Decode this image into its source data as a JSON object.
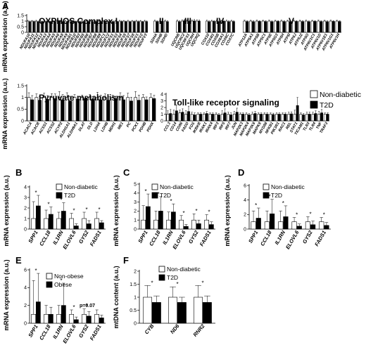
{
  "chart_data": [
    {
      "panel": "A",
      "type": "bar",
      "title": "OXPHOS Complex I",
      "ylabel": "mRNA expression (a.u.)",
      "ylim": [
        0,
        1.5
      ],
      "yticks": [
        0,
        0.5,
        1,
        1.5
      ],
      "categories": [
        "NDUFA10",
        "NDUFA11",
        "NDUFA12",
        "NDUFA13",
        "NDUFA3",
        "NDUFA4",
        "NDUFA5",
        "NDUFA6",
        "NDUFA8",
        "NDUFA9",
        "NDUFAB1",
        "NDUFB10",
        "NDUFB3",
        "NDUFB5",
        "NDUFB6",
        "NDUFB7",
        "NDUFB8",
        "NDUFB9",
        "NDUFC1",
        "NDUFC2",
        "NDUFS1",
        "NDUFS3",
        "NDUFS4",
        "NDUFS5",
        "NDUFS7",
        "NDUFS8",
        "NDUFV1",
        "NDUFV2",
        "NDUFV3"
      ],
      "series": [
        {
          "name": "Non-diabetic",
          "values": [
            1,
            1,
            1,
            1,
            1,
            1,
            1,
            1,
            1,
            1,
            1,
            1,
            1,
            1,
            1,
            1,
            1,
            1,
            1,
            1,
            1,
            1,
            1,
            1,
            1,
            1,
            1,
            1,
            1
          ],
          "error": [
            0.07,
            0.06,
            0.07,
            0.06,
            0.07,
            0.06,
            0.07,
            0.06,
            0.07,
            0.06,
            0.07,
            0.06,
            0.07,
            0.06,
            0.07,
            0.06,
            0.07,
            0.06,
            0.07,
            0.06,
            0.07,
            0.06,
            0.07,
            0.06,
            0.07,
            0.06,
            0.07,
            0.06,
            0.07
          ]
        },
        {
          "name": "T2D",
          "values": [
            0.95,
            0.96,
            0.94,
            0.95,
            0.96,
            0.95,
            0.94,
            0.96,
            0.95,
            0.94,
            0.96,
            0.95,
            0.94,
            0.96,
            0.95,
            0.94,
            0.96,
            0.95,
            0.94,
            0.96,
            0.95,
            0.94,
            0.96,
            0.95,
            0.94,
            0.96,
            0.95,
            0.94,
            0.96
          ],
          "error": [
            0.06,
            0.05,
            0.06,
            0.05,
            0.06,
            0.05,
            0.06,
            0.05,
            0.06,
            0.05,
            0.06,
            0.05,
            0.06,
            0.05,
            0.06,
            0.05,
            0.06,
            0.05,
            0.06,
            0.05,
            0.06,
            0.05,
            0.06,
            0.05,
            0.06,
            0.05,
            0.06,
            0.05,
            0.06
          ]
        }
      ]
    },
    {
      "panel": "A",
      "type": "bar",
      "title": "II",
      "ylim": [
        0,
        1.5
      ],
      "categories": [
        "SDHA",
        "SDHB",
        "SDHD"
      ],
      "series": [
        {
          "name": "Non-diabetic",
          "values": [
            1,
            1,
            1
          ],
          "error": [
            0.08,
            0.07,
            0.08
          ]
        },
        {
          "name": "T2D",
          "values": [
            0.96,
            0.97,
            0.95
          ],
          "error": [
            0.06,
            0.06,
            0.07
          ]
        }
      ]
    },
    {
      "panel": "A",
      "type": "bar",
      "title": "III",
      "ylim": [
        0,
        1.5
      ],
      "categories": [
        "UQCRB",
        "UQCRC2",
        "UQCRFS1",
        "UQCRH",
        "UQCRQ"
      ],
      "series": [
        {
          "name": "Non-diabetic",
          "values": [
            1,
            1,
            1,
            1,
            1
          ],
          "error": [
            0.1,
            0.12,
            0.1,
            0.11,
            0.12
          ]
        },
        {
          "name": "T2D",
          "values": [
            0.95,
            1.05,
            0.97,
            1.02,
            1.0
          ],
          "error": [
            0.08,
            0.1,
            0.08,
            0.12,
            0.1
          ]
        }
      ]
    },
    {
      "panel": "A",
      "type": "bar",
      "title": "IV",
      "ylim": [
        0,
        1.5
      ],
      "categories": [
        "COX10",
        "COX4I1",
        "COX5B",
        "COX6A1",
        "COX6C",
        "COX7C"
      ],
      "series": [
        {
          "name": "Non-diabetic",
          "values": [
            1,
            1,
            1,
            1,
            1,
            1
          ],
          "error": [
            0.08,
            0.07,
            0.08,
            0.07,
            0.08,
            0.07
          ]
        },
        {
          "name": "T2D",
          "values": [
            0.95,
            0.97,
            0.96,
            0.98,
            0.95,
            0.96
          ],
          "error": [
            0.07,
            0.07,
            0.06,
            0.07,
            0.07,
            0.06
          ]
        }
      ]
    },
    {
      "panel": "A",
      "type": "bar",
      "title": "V",
      "ylim": [
        0,
        1.5
      ],
      "categories": [
        "ATP12A",
        "ATP5A1",
        "ATP5B",
        "ATP5C1",
        "ATP5E",
        "ATP5G3",
        "ATP5H",
        "ATP5I",
        "ATP5J",
        "ATP5J2",
        "ATP5O",
        "ATP6V1C1",
        "ATP6V1D",
        "ATP6V1E1",
        "ATP6V1G1",
        "ATP6V1H"
      ],
      "series": [
        {
          "name": "Non-diabetic",
          "values": [
            1,
            1,
            1,
            1,
            1,
            1,
            1,
            1,
            1,
            1,
            1,
            1,
            1,
            1,
            1,
            1
          ],
          "error": [
            0.08,
            0.07,
            0.08,
            0.07,
            0.08,
            0.07,
            0.08,
            0.07,
            0.08,
            0.07,
            0.08,
            0.07,
            0.08,
            0.07,
            0.08,
            0.07
          ]
        },
        {
          "name": "T2D",
          "values": [
            0.96,
            0.95,
            0.97,
            0.96,
            0.95,
            0.97,
            0.96,
            0.95,
            0.97,
            0.96,
            0.95,
            0.97,
            0.96,
            0.95,
            0.97,
            0.96
          ],
          "error": [
            0.06,
            0.07,
            0.06,
            0.07,
            0.06,
            0.07,
            0.06,
            0.07,
            0.06,
            0.07,
            0.06,
            0.07,
            0.06,
            0.07,
            0.06,
            0.07
          ]
        }
      ]
    },
    {
      "panel": "A",
      "type": "bar",
      "title": "Pyruvate metabolism",
      "ylabel": "mRNA expression (a.u.)",
      "ylim": [
        0,
        1.5
      ],
      "yticks": [
        0,
        0.5,
        1,
        1.5
      ],
      "categories": [
        "ACACA",
        "ACACB",
        "ACSS1",
        "ACSS2",
        "ACYP2",
        "ALDH1A1",
        "ALDH9A1",
        "DLAT",
        "DLD",
        "LDHA",
        "LDHB",
        "MDH1",
        "ME1",
        "PC",
        "PCK1",
        "PDHB",
        "PDHX"
      ],
      "series": [
        {
          "name": "Non-diabetic",
          "values": [
            1,
            1,
            1,
            1,
            1,
            1,
            1,
            1,
            1,
            1,
            1,
            1,
            1,
            1,
            1,
            1,
            1
          ],
          "error": [
            0.2,
            0.15,
            0.18,
            0.16,
            0.25,
            0.2,
            0.12,
            0.1,
            0.12,
            0.22,
            0.15,
            0.1,
            0.2,
            0.18,
            0.25,
            0.12,
            0.15
          ]
        },
        {
          "name": "T2D",
          "values": [
            0.9,
            0.88,
            0.92,
            0.95,
            0.9,
            0.85,
            0.93,
            0.95,
            0.92,
            0.9,
            0.88,
            0.95,
            0.9,
            0.85,
            0.88,
            0.9,
            0.95
          ],
          "error": [
            0.18,
            0.15,
            0.16,
            0.2,
            0.22,
            0.2,
            0.12,
            0.1,
            0.12,
            0.2,
            0.15,
            0.1,
            0.18,
            0.16,
            0.22,
            0.12,
            0.14
          ]
        }
      ]
    },
    {
      "panel": "A",
      "type": "bar",
      "title": "Toll-like receptor signaling",
      "ylim": [
        0,
        4
      ],
      "yticks": [
        0,
        1,
        2,
        3,
        4
      ],
      "legend": [
        "Non-diabetic",
        "T2D"
      ],
      "categories": [
        "CCL3",
        "CD14",
        "CD86",
        "FADD",
        "FOS",
        "IKBKB",
        "IRAK1",
        "IRAK4",
        "IRF3",
        "IRF5",
        "IRF7",
        "JUN",
        "MAP2K3",
        "MAP2K4",
        "MAP3K8",
        "MAPK8",
        "MYD88",
        "NFKB1",
        "PIK3R1",
        "RAC1",
        "REL",
        "STAT1",
        "TICAM1",
        "TLR3",
        "TLR4",
        "TNF",
        "TRAF3"
      ],
      "series": [
        {
          "name": "Non-diabetic",
          "values": [
            1,
            1,
            1.2,
            1,
            1,
            1,
            1,
            1,
            1,
            1,
            1,
            1,
            1,
            1,
            1,
            1,
            1,
            1,
            1,
            1,
            1,
            1,
            1,
            1,
            1,
            1,
            1
          ],
          "error": [
            0.5,
            0.6,
            0.4,
            0.5,
            0.3,
            0.2,
            0.2,
            0.2,
            0.2,
            0.5,
            0.3,
            0.4,
            0.2,
            0.2,
            0.3,
            0.2,
            0.2,
            0.2,
            0.2,
            0.2,
            0.3,
            0.6,
            0.2,
            0.3,
            0.3,
            0.4,
            0.2
          ]
        },
        {
          "name": "T2D",
          "values": [
            1.1,
            1.5,
            1.3,
            1.4,
            0.9,
            1.0,
            1.1,
            1.0,
            0.9,
            1.2,
            0.9,
            1.3,
            1.0,
            0.9,
            1.1,
            1.0,
            1.0,
            0.95,
            1.0,
            1.0,
            1.05,
            2.3,
            0.9,
            1.0,
            1.1,
            1.2,
            1.0
          ],
          "error": [
            0.6,
            0.9,
            0.5,
            0.8,
            0.3,
            0.2,
            0.3,
            0.2,
            0.2,
            0.6,
            0.3,
            0.6,
            0.2,
            0.2,
            0.3,
            0.2,
            0.2,
            0.2,
            0.2,
            0.2,
            0.3,
            1.2,
            0.2,
            0.3,
            0.4,
            0.5,
            0.2
          ]
        }
      ]
    },
    {
      "panel": "B",
      "type": "bar",
      "ylabel": "mRNA expression (a.u.)",
      "ylim": [
        0,
        4
      ],
      "yticks": [
        0,
        1,
        2,
        3,
        4
      ],
      "legend": [
        "Non-diabetic",
        "T2D"
      ],
      "categories": [
        "SPP1",
        "CCL18",
        "IL1RN",
        "ELOVL6",
        "GYS2",
        "FADS1"
      ],
      "significant": [
        true,
        true,
        true,
        true,
        true,
        true
      ],
      "series": [
        {
          "name": "Non-diabetic",
          "values": [
            1,
            1,
            1,
            1,
            1,
            1
          ],
          "error": [
            1.6,
            0.8,
            0.6,
            0.5,
            0.6,
            0.6
          ]
        },
        {
          "name": "T2D",
          "values": [
            2.2,
            1.4,
            1.7,
            0.3,
            0.5,
            0.6
          ],
          "error": [
            1.0,
            0.7,
            0.8,
            0.2,
            0.3,
            0.2
          ]
        }
      ]
    },
    {
      "panel": "C",
      "type": "bar",
      "ylabel": "mRNA expression (a.u.)",
      "ylim": [
        0,
        5
      ],
      "yticks": [
        0,
        1,
        2,
        3,
        4,
        5
      ],
      "legend": [
        "Non-diabetic",
        "T2D"
      ],
      "categories": [
        "SPP1",
        "CCL18",
        "IL1RN",
        "ELOVL6",
        "GYS2",
        "FADS1"
      ],
      "significant": [
        true,
        true,
        true,
        true,
        true,
        true
      ],
      "series": [
        {
          "name": "Non-diabetic",
          "values": [
            1,
            1,
            1,
            1,
            1,
            1
          ],
          "error": [
            1.6,
            1.0,
            0.9,
            0.5,
            0.7,
            0.6
          ]
        },
        {
          "name": "T2D",
          "values": [
            2.5,
            2.0,
            1.9,
            0.3,
            0.6,
            0.5
          ],
          "error": [
            1.4,
            1.6,
            0.9,
            0.2,
            0.4,
            0.3
          ]
        }
      ]
    },
    {
      "panel": "D",
      "type": "bar",
      "ylabel": "mRNA expression (a.u.)",
      "ylim": [
        0,
        6
      ],
      "yticks": [
        0,
        2,
        4,
        6
      ],
      "legend": [
        "Non-diabetic",
        "T2D"
      ],
      "categories": [
        "SPP1",
        "CCL18",
        "IL1RN",
        "ELOVL6",
        "GYS2",
        "FADS1"
      ],
      "significant": [
        true,
        true,
        true,
        true,
        true,
        true
      ],
      "series": [
        {
          "name": "Non-diabetic",
          "values": [
            1,
            1,
            1,
            1,
            1,
            1
          ],
          "error": [
            1.5,
            1.5,
            1.5,
            0.6,
            0.7,
            0.6
          ]
        },
        {
          "name": "T2D",
          "values": [
            1.5,
            2.1,
            1.7,
            0.4,
            0.6,
            0.5
          ],
          "error": [
            1.4,
            2.0,
            1.5,
            0.3,
            0.5,
            0.4
          ]
        }
      ]
    },
    {
      "panel": "E",
      "type": "bar",
      "ylabel": "mRNA expression (a.u.)",
      "ylim": [
        0,
        6
      ],
      "yticks": [
        0,
        2,
        4,
        6
      ],
      "legend": [
        "Non-obese",
        "Obese"
      ],
      "categories": [
        "SPP1",
        "CCL18",
        "IL1RN",
        "ELOVL6",
        "GYS2",
        "FADS1"
      ],
      "significant": [
        true,
        false,
        true,
        true,
        true,
        false
      ],
      "annotation": "p=0.07",
      "series": [
        {
          "name": "Non-obese",
          "values": [
            1,
            1,
            1,
            1,
            1,
            1
          ],
          "error": [
            3.8,
            1.0,
            1.0,
            0.5,
            0.6,
            0.5
          ]
        },
        {
          "name": "Obese",
          "values": [
            2.4,
            1.0,
            2.0,
            0.4,
            0.8,
            0.6
          ],
          "error": [
            3.2,
            0.8,
            2.5,
            0.3,
            0.5,
            0.3
          ]
        }
      ]
    },
    {
      "panel": "F",
      "type": "bar",
      "ylabel": "mtDNA content (a.u.)",
      "ylim": [
        0,
        2.0
      ],
      "yticks": [
        0,
        0.5,
        1.0,
        1.5,
        2.0
      ],
      "legend": [
        "Non-diabetic",
        "T2D"
      ],
      "categories": [
        "CYB",
        "ND6",
        "RNR2"
      ],
      "significant": [
        true,
        true,
        true
      ],
      "series": [
        {
          "name": "Non-diabetic",
          "values": [
            1.0,
            1.0,
            1.0
          ],
          "error": [
            0.45,
            0.4,
            0.45
          ]
        },
        {
          "name": "T2D",
          "values": [
            0.8,
            0.8,
            0.8
          ],
          "error": [
            0.25,
            0.2,
            0.25
          ]
        }
      ]
    }
  ]
}
